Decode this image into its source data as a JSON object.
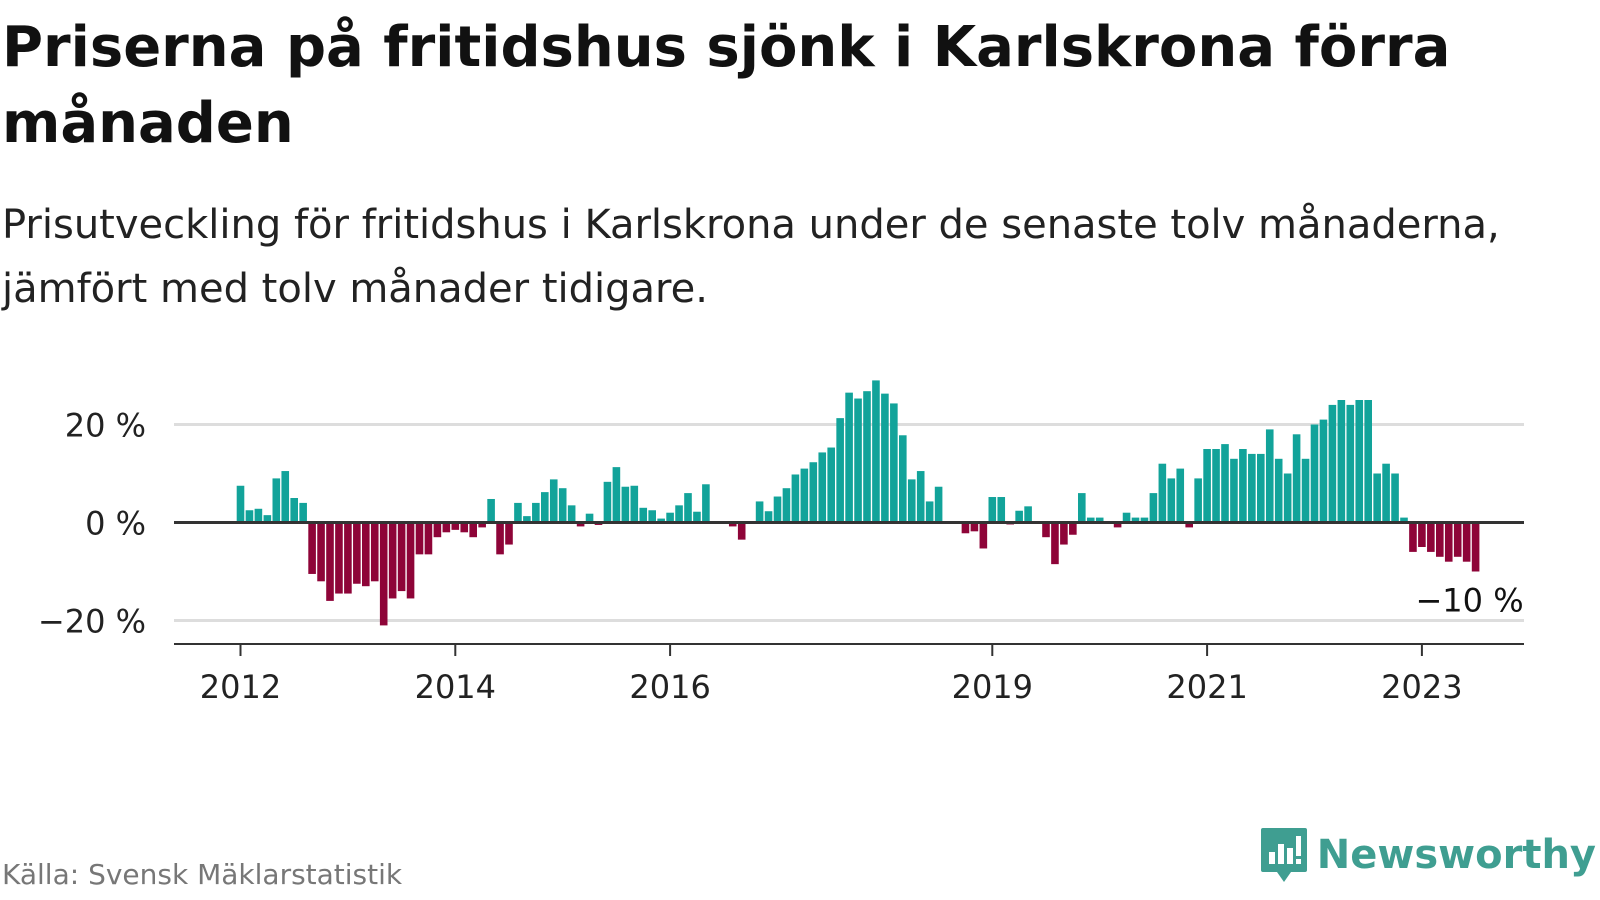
{
  "header": {
    "title": "Priserna på fritidshus sjönk i Karlskrona förra månaden",
    "subtitle": "Prisutveckling för fritidshus i Karlskrona under de senaste tolv månaderna, jämfört med tolv månader tidigare."
  },
  "footer": {
    "source": "Källa: Svensk Mäklarstatistik",
    "brand": "Newsworthy"
  },
  "colors": {
    "positive": "#12a39a",
    "negative": "#8e0438",
    "brand": "#3f9e91",
    "grid": "#dddddd",
    "axis": "#333333"
  },
  "chart_data": {
    "type": "bar",
    "x_start": "2012-01",
    "frequency": "monthly",
    "values": [
      7.5,
      2.5,
      2.8,
      1.5,
      9,
      10.5,
      5,
      4,
      -10.5,
      -12,
      -16,
      -14.5,
      -14.5,
      -12.5,
      -13,
      -12,
      -21,
      -15.5,
      -14,
      -15.5,
      -6.5,
      -6.5,
      -3,
      -2,
      -1.5,
      -2,
      -3,
      -1,
      4.8,
      -6.5,
      -4.5,
      4,
      1.3,
      4,
      6.2,
      8.8,
      7,
      3.5,
      -0.8,
      1.8,
      -0.5,
      8.3,
      11.3,
      7.3,
      7.5,
      3,
      2.5,
      0.8,
      2,
      3.5,
      6,
      2.2,
      7.8,
      0,
      0,
      -0.8,
      -3.5,
      0,
      4.3,
      2.3,
      5.3,
      7,
      9.8,
      11,
      12.3,
      14.3,
      15.3,
      21.3,
      26.5,
      25.3,
      26.8,
      29,
      26.3,
      24.3,
      17.8,
      8.8,
      10.5,
      4.3,
      7.3,
      0,
      0,
      -2.2,
      -1.8,
      -5.3,
      5.2,
      5.2,
      -0.4,
      2.4,
      3.3,
      0,
      -3,
      -8.5,
      -4.5,
      -2.5,
      6,
      1,
      1,
      0,
      -1,
      2,
      1,
      1,
      6,
      12,
      9,
      11,
      -1,
      9,
      15,
      15,
      16,
      13,
      15,
      14,
      14,
      19,
      13,
      10,
      18,
      13,
      20,
      21,
      24,
      25,
      24,
      25,
      25,
      10,
      12,
      10,
      1,
      -6,
      -5,
      -6,
      -7,
      -8,
      -7,
      -8,
      -10
    ],
    "x_ticks": [
      {
        "label": "2012",
        "date": "2012-01"
      },
      {
        "label": "2014",
        "date": "2014-01"
      },
      {
        "label": "2016",
        "date": "2016-01"
      },
      {
        "label": "2019",
        "date": "2019-01"
      },
      {
        "label": "2021",
        "date": "2021-01"
      },
      {
        "label": "2023",
        "date": "2023-01"
      }
    ],
    "y_ticks": [
      {
        "value": 20,
        "label": "20 %"
      },
      {
        "value": 0,
        "label": "0 %"
      },
      {
        "value": -20,
        "label": "−20 %"
      }
    ],
    "ylim": [
      -24,
      30
    ],
    "last_value_label": "−10 %",
    "grid": true
  }
}
